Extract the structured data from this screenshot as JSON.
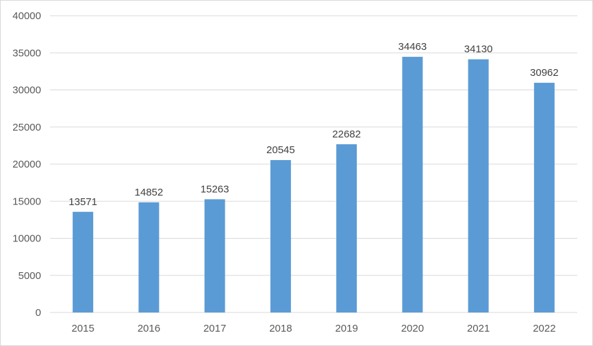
{
  "chart_data": {
    "type": "bar",
    "title": "",
    "xlabel": "",
    "ylabel": "",
    "categories": [
      "2015",
      "2016",
      "2017",
      "2018",
      "2019",
      "2020",
      "2021",
      "2022"
    ],
    "values": [
      13571,
      14852,
      15263,
      20545,
      22682,
      34463,
      34130,
      30962
    ],
    "data_labels": [
      "13571",
      "14852",
      "15263",
      "20545",
      "22682",
      "34463",
      "34130",
      "30962"
    ],
    "ylim": [
      0,
      40000
    ],
    "yticks": [
      "0",
      "5000",
      "10000",
      "15000",
      "20000",
      "25000",
      "30000",
      "35000",
      "40000"
    ],
    "grid": true,
    "legend": "none",
    "colors": {
      "bar": "#5b9bd5",
      "grid": "#d9d9d9",
      "axis": "#d9d9d9",
      "text": "#595959"
    }
  }
}
